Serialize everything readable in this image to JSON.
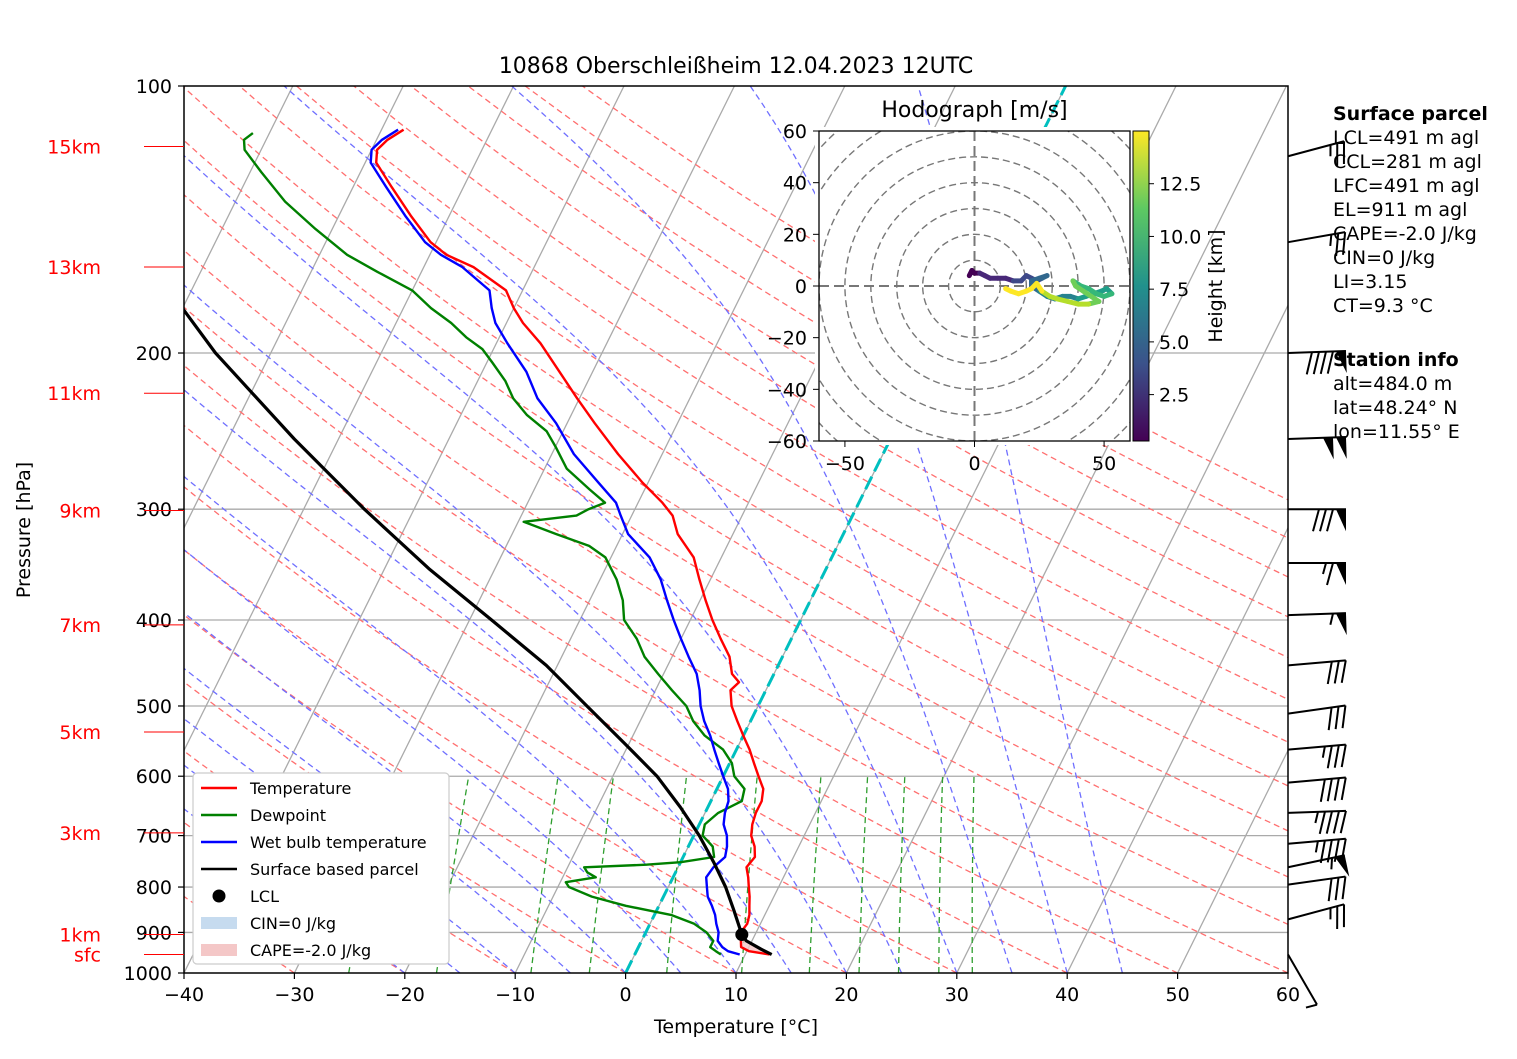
{
  "chart_data": {
    "type": "line",
    "subtype": "skew-T log-P diagram",
    "title": "10868 Oberschleißheim 12.04.2023 12UTC",
    "xlabel": "Temperature [°C]",
    "ylabel": "Pressure [hPa]",
    "xlim": [
      -40,
      60
    ],
    "ylim": [
      1000,
      100
    ],
    "y_scale": "log",
    "x_ticks": [
      "−40",
      "−30",
      "−20",
      "−10",
      "0",
      "10",
      "20",
      "30",
      "40",
      "50",
      "60"
    ],
    "y_ticks": [
      "100",
      "200",
      "300",
      "400",
      "500",
      "600",
      "700",
      "800",
      "900",
      "1000"
    ],
    "height_labels": [
      {
        "label": "sfc",
        "p": 953
      },
      {
        "label": "1km",
        "p": 905
      },
      {
        "label": "3km",
        "p": 695
      },
      {
        "label": "5km",
        "p": 535
      },
      {
        "label": "7km",
        "p": 405
      },
      {
        "label": "9km",
        "p": 301
      },
      {
        "label": "11km",
        "p": 222
      },
      {
        "label": "13km",
        "p": 160
      },
      {
        "label": "15km",
        "p": 117
      }
    ],
    "grid": true,
    "legend_position": "lower-left",
    "series": [
      {
        "name": "Temperature",
        "color": "#ff0000",
        "points": [
          [
            953,
            12.2
          ],
          [
            945,
            10.2
          ],
          [
            935,
            9.3
          ],
          [
            920,
            9.0
          ],
          [
            900,
            8.6
          ],
          [
            880,
            8.8
          ],
          [
            860,
            8.6
          ],
          [
            840,
            8.2
          ],
          [
            820,
            7.8
          ],
          [
            800,
            7.3
          ],
          [
            780,
            6.8
          ],
          [
            760,
            6.2
          ],
          [
            740,
            6.5
          ],
          [
            720,
            6.0
          ],
          [
            700,
            5.2
          ],
          [
            680,
            4.8
          ],
          [
            660,
            4.6
          ],
          [
            640,
            4.6
          ],
          [
            620,
            4.2
          ],
          [
            600,
            3.2
          ],
          [
            580,
            2.2
          ],
          [
            560,
            1.2
          ],
          [
            540,
            0.0
          ],
          [
            520,
            -1.2
          ],
          [
            500,
            -2.4
          ],
          [
            480,
            -3.2
          ],
          [
            470,
            -2.8
          ],
          [
            460,
            -3.8
          ],
          [
            440,
            -4.8
          ],
          [
            420,
            -6.4
          ],
          [
            400,
            -8.0
          ],
          [
            380,
            -9.5
          ],
          [
            360,
            -11.0
          ],
          [
            340,
            -12.5
          ],
          [
            320,
            -15.0
          ],
          [
            305,
            -16.3
          ],
          [
            295,
            -17.8
          ],
          [
            280,
            -20.5
          ],
          [
            260,
            -24.0
          ],
          [
            240,
            -27.5
          ],
          [
            225,
            -30.2
          ],
          [
            210,
            -33.0
          ],
          [
            195,
            -36.0
          ],
          [
            185,
            -38.5
          ],
          [
            178,
            -40.0
          ],
          [
            170,
            -41.5
          ],
          [
            160,
            -45.5
          ],
          [
            155,
            -48.5
          ],
          [
            150,
            -50.5
          ],
          [
            140,
            -53.5
          ],
          [
            130,
            -56.5
          ],
          [
            122,
            -59.0
          ],
          [
            118,
            -59.5
          ],
          [
            115,
            -59.0
          ],
          [
            112,
            -58.0
          ]
        ]
      },
      {
        "name": "Dewpoint",
        "color": "#008000",
        "points": [
          [
            953,
            7.8
          ],
          [
            945,
            7.2
          ],
          [
            935,
            6.5
          ],
          [
            920,
            6.5
          ],
          [
            900,
            5.5
          ],
          [
            880,
            4.0
          ],
          [
            860,
            1.5
          ],
          [
            840,
            -3.0
          ],
          [
            820,
            -6.5
          ],
          [
            800,
            -9.0
          ],
          [
            790,
            -9.5
          ],
          [
            780,
            -7.0
          ],
          [
            770,
            -8.0
          ],
          [
            760,
            -8.5
          ],
          [
            755,
            -3.0
          ],
          [
            750,
            0.0
          ],
          [
            740,
            2.8
          ],
          [
            720,
            2.2
          ],
          [
            700,
            0.8
          ],
          [
            680,
            0.5
          ],
          [
            660,
            1.2
          ],
          [
            640,
            2.8
          ],
          [
            620,
            2.5
          ],
          [
            600,
            1.0
          ],
          [
            580,
            0.2
          ],
          [
            560,
            -1.2
          ],
          [
            540,
            -3.5
          ],
          [
            520,
            -5.2
          ],
          [
            500,
            -6.5
          ],
          [
            480,
            -8.5
          ],
          [
            460,
            -10.5
          ],
          [
            440,
            -12.5
          ],
          [
            420,
            -14.0
          ],
          [
            400,
            -16.0
          ],
          [
            380,
            -17.0
          ],
          [
            360,
            -18.5
          ],
          [
            340,
            -20.5
          ],
          [
            330,
            -22.5
          ],
          [
            320,
            -26.0
          ],
          [
            310,
            -29.5
          ],
          [
            305,
            -25.0
          ],
          [
            300,
            -24.2
          ],
          [
            295,
            -23.0
          ],
          [
            285,
            -25.0
          ],
          [
            270,
            -28.0
          ],
          [
            255,
            -30.0
          ],
          [
            245,
            -31.5
          ],
          [
            235,
            -34.0
          ],
          [
            225,
            -36.0
          ],
          [
            215,
            -37.5
          ],
          [
            205,
            -39.5
          ],
          [
            198,
            -41.0
          ],
          [
            192,
            -43.0
          ],
          [
            185,
            -45.0
          ],
          [
            178,
            -47.5
          ],
          [
            170,
            -50.0
          ],
          [
            162,
            -54.0
          ],
          [
            155,
            -57.5
          ],
          [
            145,
            -61.5
          ],
          [
            135,
            -65.5
          ],
          [
            125,
            -69.0
          ],
          [
            118,
            -71.5
          ],
          [
            115,
            -72.0
          ],
          [
            113,
            -71.5
          ]
        ]
      },
      {
        "name": "Wet bulb temperature",
        "color": "#0000ff",
        "points": [
          [
            953,
            9.5
          ],
          [
            945,
            8.3
          ],
          [
            935,
            7.6
          ],
          [
            920,
            6.9
          ],
          [
            900,
            6.6
          ],
          [
            880,
            6.0
          ],
          [
            860,
            5.5
          ],
          [
            840,
            4.8
          ],
          [
            820,
            4.0
          ],
          [
            800,
            3.5
          ],
          [
            780,
            3.0
          ],
          [
            760,
            3.2
          ],
          [
            740,
            3.8
          ],
          [
            720,
            3.5
          ],
          [
            700,
            3.0
          ],
          [
            680,
            2.2
          ],
          [
            660,
            1.8
          ],
          [
            640,
            1.6
          ],
          [
            620,
            1.0
          ],
          [
            600,
            0.0
          ],
          [
            580,
            -1.0
          ],
          [
            560,
            -2.0
          ],
          [
            540,
            -3.0
          ],
          [
            520,
            -4.2
          ],
          [
            500,
            -5.2
          ],
          [
            480,
            -6.0
          ],
          [
            460,
            -7.0
          ],
          [
            440,
            -8.5
          ],
          [
            420,
            -10.0
          ],
          [
            400,
            -11.5
          ],
          [
            380,
            -13.0
          ],
          [
            360,
            -14.5
          ],
          [
            340,
            -16.5
          ],
          [
            320,
            -19.5
          ],
          [
            305,
            -21.0
          ],
          [
            295,
            -22.0
          ],
          [
            280,
            -24.5
          ],
          [
            260,
            -28.0
          ],
          [
            240,
            -31.0
          ],
          [
            225,
            -33.8
          ],
          [
            210,
            -36.0
          ],
          [
            195,
            -39.0
          ],
          [
            185,
            -41.0
          ],
          [
            178,
            -42.0
          ],
          [
            170,
            -43.0
          ],
          [
            160,
            -46.5
          ],
          [
            155,
            -49.0
          ],
          [
            150,
            -51.0
          ],
          [
            140,
            -54.0
          ],
          [
            130,
            -57.0
          ],
          [
            122,
            -59.5
          ],
          [
            118,
            -60.0
          ],
          [
            115,
            -59.5
          ],
          [
            112,
            -58.5
          ]
        ]
      },
      {
        "name": "Surface based parcel",
        "color": "#000000",
        "points": [
          [
            953,
            12.4
          ],
          [
            940,
            11.2
          ],
          [
            920,
            9.5
          ],
          [
            905,
            8.8
          ],
          [
            880,
            8.0
          ],
          [
            850,
            7.0
          ],
          [
            800,
            5.2
          ],
          [
            750,
            3.0
          ],
          [
            700,
            0.5
          ],
          [
            650,
            -2.5
          ],
          [
            600,
            -6.0
          ],
          [
            550,
            -10.5
          ],
          [
            500,
            -15.5
          ],
          [
            450,
            -21.0
          ],
          [
            400,
            -28.0
          ],
          [
            350,
            -36.0
          ],
          [
            300,
            -44.5
          ],
          [
            250,
            -54.0
          ],
          [
            200,
            -65.0
          ],
          [
            170,
            -72.0
          ],
          [
            150,
            -77.0
          ],
          [
            130,
            -82.0
          ]
        ]
      }
    ],
    "lcl_marker": {
      "name": "LCL",
      "p": 905,
      "t": 8.8
    },
    "cin_fill_label": "CIN=0 J/kg",
    "cape_fill_label": "CAPE=-2.0 J/kg",
    "zero_isotherm_color": "#00bfbf",
    "wind_barbs": [
      {
        "p": 953,
        "speed_kt": 5,
        "dir_deg": 330
      },
      {
        "p": 870,
        "speed_kt": 25,
        "dir_deg": 255
      },
      {
        "p": 795,
        "speed_kt": 30,
        "dir_deg": 262
      },
      {
        "p": 760,
        "speed_kt": 55,
        "dir_deg": 258
      },
      {
        "p": 715,
        "speed_kt": 45,
        "dir_deg": 265
      },
      {
        "p": 660,
        "speed_kt": 45,
        "dir_deg": 268
      },
      {
        "p": 610,
        "speed_kt": 40,
        "dir_deg": 265
      },
      {
        "p": 560,
        "speed_kt": 35,
        "dir_deg": 265
      },
      {
        "p": 510,
        "speed_kt": 30,
        "dir_deg": 262
      },
      {
        "p": 450,
        "speed_kt": 30,
        "dir_deg": 265
      },
      {
        "p": 395,
        "speed_kt": 55,
        "dir_deg": 268
      },
      {
        "p": 345,
        "speed_kt": 65,
        "dir_deg": 270
      },
      {
        "p": 300,
        "speed_kt": 80,
        "dir_deg": 270
      },
      {
        "p": 250,
        "speed_kt": 100,
        "dir_deg": 268
      },
      {
        "p": 200,
        "speed_kt": 90,
        "dir_deg": 268
      },
      {
        "p": 150,
        "speed_kt": 25,
        "dir_deg": 260
      },
      {
        "p": 120,
        "speed_kt": 25,
        "dir_deg": 255
      }
    ],
    "hodograph": {
      "title": "Hodograph [m/s]",
      "xlim": [
        -60,
        60
      ],
      "ylim": [
        -60,
        60
      ],
      "x_ticks": [
        "−50",
        "0",
        "50"
      ],
      "y_ticks": [
        "60",
        "40",
        "20",
        "0",
        "−20",
        "−40",
        "−60"
      ],
      "ring_spacing": 10,
      "colorbar_label": "Height [km]",
      "colorbar_ticks": [
        "2.5",
        "5.0",
        "7.5",
        "10.0",
        "12.5"
      ],
      "colormap": "viridis",
      "points": [
        [
          -2,
          4,
          0.3
        ],
        [
          -1,
          6,
          0.6
        ],
        [
          0,
          5,
          0.9
        ],
        [
          2,
          5,
          1.2
        ],
        [
          4,
          4,
          1.5
        ],
        [
          6,
          3,
          1.8
        ],
        [
          9,
          3,
          2.1
        ],
        [
          12,
          3,
          2.4
        ],
        [
          15,
          2,
          2.7
        ],
        [
          18,
          2,
          3.0
        ],
        [
          20,
          4,
          3.3
        ],
        [
          22,
          3,
          3.6
        ],
        [
          24,
          2,
          3.9
        ],
        [
          26,
          3,
          4.2
        ],
        [
          28,
          4,
          4.5
        ],
        [
          25,
          3,
          4.8
        ],
        [
          22,
          2,
          5.1
        ],
        [
          22,
          0,
          5.4
        ],
        [
          25,
          -2,
          5.7
        ],
        [
          28,
          -4,
          6.0
        ],
        [
          31,
          -5,
          6.3
        ],
        [
          34,
          -4,
          6.6
        ],
        [
          37,
          -4,
          6.9
        ],
        [
          40,
          -5,
          7.2
        ],
        [
          43,
          -4,
          7.5
        ],
        [
          46,
          -3,
          7.8
        ],
        [
          49,
          -2,
          8.1
        ],
        [
          51,
          -1,
          8.4
        ],
        [
          53,
          -3,
          8.7
        ],
        [
          50,
          -4,
          9.0
        ],
        [
          47,
          -3,
          9.3
        ],
        [
          44,
          -1,
          9.6
        ],
        [
          41,
          0,
          9.9
        ],
        [
          38,
          2,
          10.2
        ],
        [
          39,
          0,
          10.5
        ],
        [
          42,
          -2,
          10.8
        ],
        [
          45,
          -4,
          11.1
        ],
        [
          48,
          -6,
          11.4
        ],
        [
          44,
          -7,
          11.7
        ],
        [
          40,
          -7,
          12.0
        ],
        [
          36,
          -6,
          12.3
        ],
        [
          32,
          -5,
          12.6
        ],
        [
          29,
          -4,
          12.9
        ],
        [
          26,
          -2,
          13.2
        ],
        [
          24,
          1,
          13.5
        ],
        [
          22,
          -1,
          13.8
        ],
        [
          20,
          -2,
          14.1
        ],
        [
          17,
          -3,
          14.4
        ],
        [
          14,
          -2,
          14.7
        ],
        [
          12,
          -1,
          15.0
        ]
      ]
    }
  },
  "sidebar": {
    "surface_title": "Surface parcel",
    "lcl": "LCL=491 m agl",
    "ccl": "CCL=281 m agl",
    "lfc": "LFC=491 m agl",
    "el": "EL=911 m agl",
    "cape": "CAPE=-2.0 J/kg",
    "cin": "CIN=0 J/kg",
    "li": "LI=3.15",
    "ct": "CT=9.3 °C",
    "station_title": "Station info",
    "alt": "alt=484.0 m",
    "lat": "lat=48.24° N",
    "lon": "lon=11.55° E"
  },
  "legend": {
    "temperature": "Temperature",
    "dewpoint": "Dewpoint",
    "wetbulb": "Wet bulb temperature",
    "parcel": "Surface based parcel",
    "lcl": "LCL",
    "cin": "CIN=0 J/kg",
    "cape": "CAPE=-2.0 J/kg"
  },
  "colors": {
    "temperature": "#ff0000",
    "dewpoint": "#008000",
    "wetbulb": "#0000ff",
    "parcel": "#000000",
    "dry_adiabat": "#ff6f6f",
    "moist_adiabat": "#6f6fff",
    "mixing_ratio": "#2e9e2e",
    "isotherm": "#aaaaaa",
    "height_label": "#ff0000",
    "cin_fill": "#c6dbef",
    "cape_fill": "#f4c7c7"
  }
}
